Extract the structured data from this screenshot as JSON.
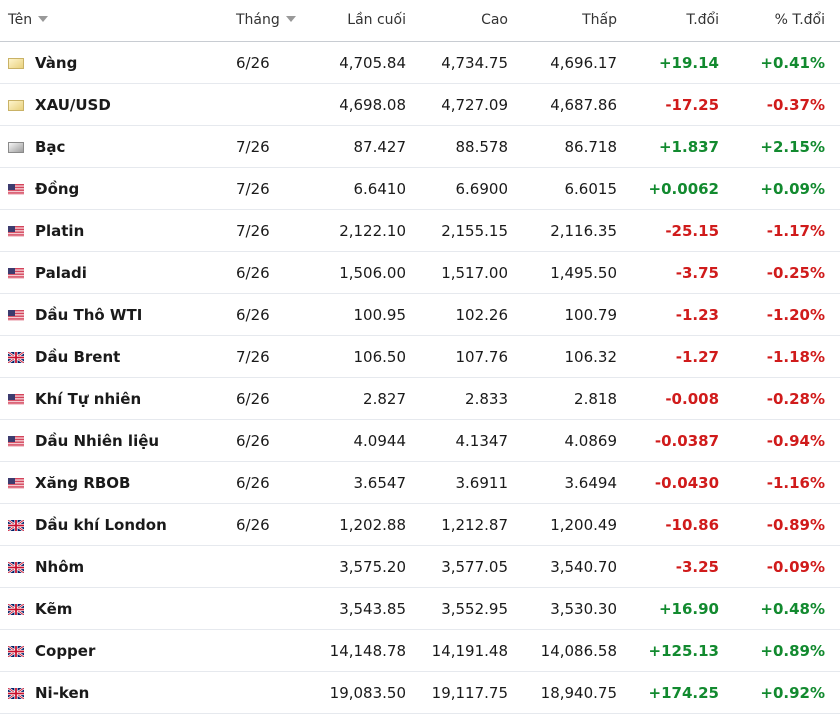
{
  "table": {
    "columns": [
      "Tên",
      "Tháng",
      "Lần cuối",
      "Cao",
      "Thấp",
      "T.đổi",
      "% T.đổi"
    ],
    "rows": [
      {
        "flag": "gold",
        "cells": [
          "Vàng",
          "6/26",
          "4,705.84",
          "4,734.75",
          "4,696.17",
          "+19.14",
          "+0.41%"
        ]
      },
      {
        "flag": "gold",
        "cells": [
          "XAU/USD",
          "",
          "4,698.08",
          "4,727.09",
          "4,687.86",
          "-17.25",
          "-0.37%"
        ]
      },
      {
        "flag": "silver",
        "cells": [
          "Bạc",
          "7/26",
          "87.427",
          "88.578",
          "86.718",
          "+1.837",
          "+2.15%"
        ]
      },
      {
        "flag": "us",
        "cells": [
          "Đồng",
          "7/26",
          "6.6410",
          "6.6900",
          "6.6015",
          "+0.0062",
          "+0.09%"
        ]
      },
      {
        "flag": "us",
        "cells": [
          "Platin",
          "7/26",
          "2,122.10",
          "2,155.15",
          "2,116.35",
          "-25.15",
          "-1.17%"
        ]
      },
      {
        "flag": "us",
        "cells": [
          "Paladi",
          "6/26",
          "1,506.00",
          "1,517.00",
          "1,495.50",
          "-3.75",
          "-0.25%"
        ]
      },
      {
        "flag": "us",
        "cells": [
          "Dầu Thô WTI",
          "6/26",
          "100.95",
          "102.26",
          "100.79",
          "-1.23",
          "-1.20%"
        ]
      },
      {
        "flag": "uk",
        "cells": [
          "Dầu Brent",
          "7/26",
          "106.50",
          "107.76",
          "106.32",
          "-1.27",
          "-1.18%"
        ]
      },
      {
        "flag": "us",
        "cells": [
          "Khí Tự nhiên",
          "6/26",
          "2.827",
          "2.833",
          "2.818",
          "-0.008",
          "-0.28%"
        ]
      },
      {
        "flag": "us",
        "cells": [
          "Dầu Nhiên liệu",
          "6/26",
          "4.0944",
          "4.1347",
          "4.0869",
          "-0.0387",
          "-0.94%"
        ]
      },
      {
        "flag": "us",
        "cells": [
          "Xăng RBOB",
          "6/26",
          "3.6547",
          "3.6911",
          "3.6494",
          "-0.0430",
          "-1.16%"
        ]
      },
      {
        "flag": "uk",
        "cells": [
          "Dầu khí London",
          "6/26",
          "1,202.88",
          "1,212.87",
          "1,200.49",
          "-10.86",
          "-0.89%"
        ]
      },
      {
        "flag": "uk",
        "cells": [
          "Nhôm",
          "",
          "3,575.20",
          "3,577.05",
          "3,540.70",
          "-3.25",
          "-0.09%"
        ]
      },
      {
        "flag": "uk",
        "cells": [
          "Kẽm",
          "",
          "3,543.85",
          "3,552.95",
          "3,530.30",
          "+16.90",
          "+0.48%"
        ]
      },
      {
        "flag": "uk",
        "cells": [
          "Copper",
          "",
          "14,148.78",
          "14,191.48",
          "14,086.58",
          "+125.13",
          "+0.89%"
        ]
      },
      {
        "flag": "uk",
        "cells": [
          "Ni-ken",
          "",
          "19,083.50",
          "19,117.75",
          "18,940.75",
          "+174.25",
          "+0.92%"
        ]
      }
    ]
  }
}
